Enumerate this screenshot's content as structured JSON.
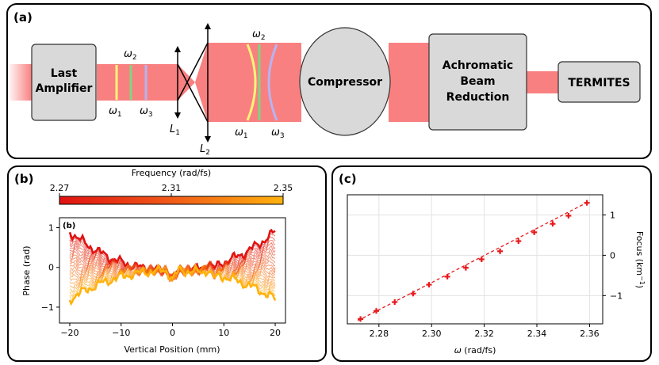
{
  "panel_a": {
    "label": "(a)",
    "boxes": {
      "last_amplifier_1": "Last",
      "last_amplifier_2": "Amplifier",
      "compressor": "Compressor",
      "achromatic_1": "Achromatic",
      "achromatic_2": "Beam",
      "achromatic_3": "Reduction",
      "termites": "TERMITES"
    },
    "freq": {
      "w1": "ω",
      "w2": "ω",
      "w3": "ω",
      "sub1": "1",
      "sub2": "2",
      "sub3": "3"
    },
    "lens": {
      "L": "L",
      "sub1": "1",
      "sub2": "2"
    },
    "colors": {
      "beam": "#f98080",
      "box": "#d9d9d9",
      "w1": "#fff37a",
      "w2": "#7fd67f",
      "w3": "#b7b3f3"
    }
  },
  "panel_b": {
    "label": "(b)",
    "inner_label": "(b)",
    "colorbar": {
      "title": "Frequency (rad/fs)",
      "ticks": [
        "2.27",
        "2.31",
        "2.35"
      ],
      "range": [
        2.27,
        2.35
      ]
    },
    "xlabel": "Vertical Position (mm)",
    "ylabel": "Phase (rad)",
    "xticks": [
      "−20",
      "−10",
      "0",
      "10",
      "20"
    ],
    "yticks": [
      "1",
      "0",
      "−1"
    ]
  },
  "panel_c": {
    "label": "(c)",
    "xlabel_symbol": "ω",
    "xlabel_unit": " (rad/fs)",
    "ylabel": "Focus (km",
    "ylabel_sup": "−1",
    "ylabel_end": ")",
    "xticks": [
      "2.28",
      "2.30",
      "2.32",
      "2.34",
      "2.36"
    ],
    "yticks": [
      "1",
      "0",
      "−1"
    ]
  },
  "chart_data": [
    {
      "type": "line",
      "title": "",
      "xlabel": "Vertical Position (mm)",
      "ylabel": "Phase (rad)",
      "xlim": [
        -22,
        22
      ],
      "ylim": [
        -1.4,
        1.25
      ],
      "colorbar_label": "Frequency (rad/fs)",
      "n_series": 22,
      "note": "Per-frequency wavefront phase curves; edge phase ranges from about +0.9 rad (2.27 rad/fs) to about -0.8 rad (2.35 rad/fs).",
      "series_edge_phase": {
        "2.27": 0.9,
        "2.35": -0.8
      }
    },
    {
      "type": "scatter",
      "title": "",
      "xlabel": "ω (rad/fs)",
      "ylabel": "Focus (km⁻¹)",
      "xlim": [
        2.268,
        2.365
      ],
      "ylim": [
        -1.7,
        1.5
      ],
      "grid": true,
      "points": {
        "x": [
          2.273,
          2.279,
          2.286,
          2.293,
          2.299,
          2.306,
          2.313,
          2.319,
          2.326,
          2.333,
          2.339,
          2.346,
          2.352,
          2.359
        ],
        "y": [
          -1.58,
          -1.38,
          -1.16,
          -0.95,
          -0.73,
          -0.53,
          -0.31,
          -0.1,
          0.1,
          0.35,
          0.57,
          0.78,
          0.98,
          1.3
        ]
      },
      "fit": {
        "x": [
          2.272,
          2.36
        ],
        "y": [
          -1.62,
          1.34
        ]
      },
      "marker_color": "#e8191c"
    }
  ]
}
